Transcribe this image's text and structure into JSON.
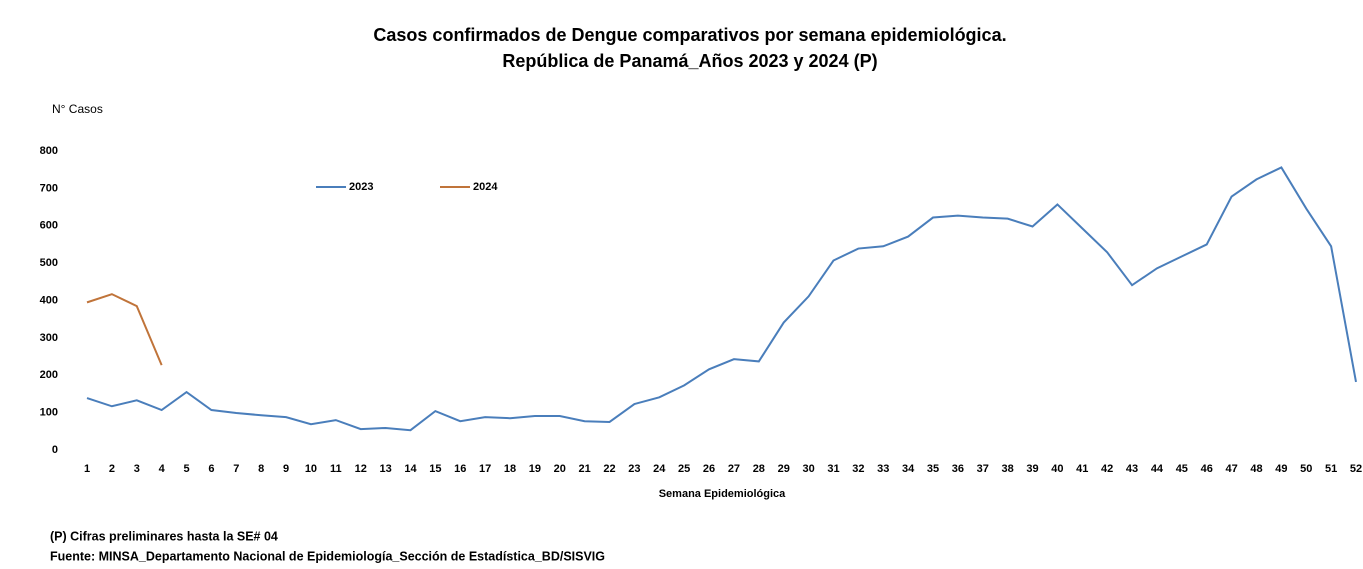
{
  "chart_data": {
    "type": "line",
    "title": "Casos confirmados de Dengue comparativos por semana epidemiológica.",
    "subtitle": "República de Panamá_Años 2023 y 2024 (P)",
    "y_label": "N° Casos",
    "x_label": "Semana Epidemiológica",
    "notes": [
      "(P) Cifras preliminares hasta la SE# 04",
      "Fuente: MINSA_Departamento Nacional de Epidemiología_Sección de Estadística_BD/SISVIG"
    ],
    "categories": [
      "1",
      "2",
      "3",
      "4",
      "5",
      "6",
      "7",
      "8",
      "9",
      "10",
      "11",
      "12",
      "13",
      "14",
      "15",
      "16",
      "17",
      "18",
      "19",
      "20",
      "21",
      "22",
      "23",
      "24",
      "25",
      "26",
      "27",
      "28",
      "29",
      "30",
      "31",
      "32",
      "33",
      "34",
      "35",
      "36",
      "37",
      "38",
      "39",
      "40",
      "41",
      "42",
      "43",
      "44",
      "45",
      "46",
      "47",
      "48",
      "49",
      "50",
      "51",
      "52"
    ],
    "series": [
      {
        "name": "2023",
        "color": "#4a7ebb",
        "values": [
          139,
          117,
          133,
          107,
          155,
          107,
          99,
          93,
          88,
          69,
          80,
          56,
          59,
          53,
          104,
          77,
          88,
          85,
          91,
          91,
          77,
          75,
          123,
          141,
          173,
          216,
          243,
          237,
          341,
          411,
          507,
          539,
          545,
          571,
          622,
          627,
          622,
          619,
          598,
          657,
          593,
          529,
          441,
          486,
          518,
          550,
          678,
          724,
          756,
          646,
          545,
          182
        ]
      },
      {
        "name": "2024",
        "color": "#c0743a",
        "values": [
          395,
          417,
          385,
          227,
          null,
          null,
          null,
          null,
          null,
          null,
          null,
          null,
          null,
          null,
          null,
          null,
          null,
          null,
          null,
          null,
          null,
          null,
          null,
          null,
          null,
          null,
          null,
          null,
          null,
          null,
          null,
          null,
          null,
          null,
          null,
          null,
          null,
          null,
          null,
          null,
          null,
          null,
          null,
          null,
          null,
          null,
          null,
          null,
          null,
          null,
          null,
          null
        ]
      }
    ],
    "ylim": [
      0,
      800
    ],
    "yticks": [
      0,
      100,
      200,
      300,
      400,
      500,
      600,
      700,
      800
    ],
    "grid": false,
    "legend": "top"
  }
}
